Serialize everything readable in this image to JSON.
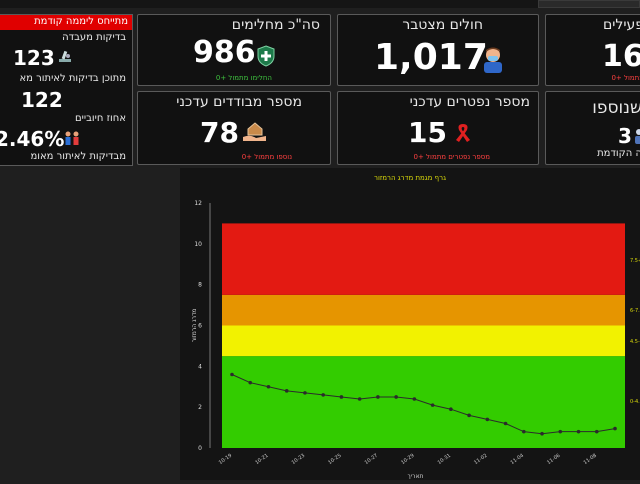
{
  "left_panel": {
    "banner": "מתייחס ליממה קודמת",
    "tests_label": "בדיקות מעבדה",
    "tests_value": "123",
    "tracing_label": "מתוכן בדיקות לאיתור מא",
    "tracing_value": "122",
    "positive_label": "אחוז חיוביים",
    "positive_value": "2.46%",
    "confirmed_label": "מבדיקות לאיתור מאומ"
  },
  "cards": {
    "recovered": {
      "title": "סה\"כ מחלימים",
      "value": "986",
      "sub": "החלימו מתמול +0",
      "icon": "shield-medical-icon",
      "accent": "#3ec23e"
    },
    "cumulative": {
      "title": "חולים מצטבר",
      "value": "1,017",
      "icon": "patient-mask-icon"
    },
    "active": {
      "title": "פעילים",
      "value": "16",
      "sub": "מתמול +0",
      "icon": "person-icon"
    },
    "isolated": {
      "title": "מספר מבודדים עדכני",
      "value": "78",
      "sub": "נוספו מתמול +0",
      "icon": "hand-house-icon"
    },
    "deceased": {
      "title": "מספר נפטרים עדכני",
      "value": "15",
      "sub": "מספר נפטרים מתמול +0",
      "icon": "ribbon-icon"
    },
    "added": {
      "title": "שנוספו",
      "value": "3",
      "sub": "ה הקודמת",
      "icon": "people-icon"
    }
  },
  "chart_data": {
    "type": "line",
    "title": "גרף מגמת מדרג הרמזור",
    "xlabel": "תאריך",
    "ylabel": "מדרג הרמזור",
    "ylim": [
      0,
      12
    ],
    "yticks": [
      "0",
      "2",
      "4",
      "6",
      "8",
      "10",
      "12"
    ],
    "bands": [
      {
        "from": 0,
        "to": 4.5,
        "color": "#33cc00"
      },
      {
        "from": 4.5,
        "to": 6,
        "color": "#f2f200"
      },
      {
        "from": 6,
        "to": 7.5,
        "color": "#e69500"
      },
      {
        "from": 7.5,
        "to": 11,
        "color": "#e31a12"
      }
    ],
    "right_labels": [
      "0-4.5",
      "4.5-6",
      "6-7.5",
      "7.5+"
    ],
    "categories": [
      "10-19",
      "10-20",
      "10-21",
      "10-22",
      "10-23",
      "10-24",
      "10-25",
      "10-26",
      "10-27",
      "10-28",
      "10-29",
      "10-30",
      "10-31",
      "11-01",
      "11-02",
      "11-03",
      "11-04",
      "11-05",
      "11-06",
      "11-07",
      "11-08",
      "11-09"
    ],
    "x_tick_labels": [
      "10-19",
      "10-21",
      "10-23",
      "10-25",
      "10-27",
      "10-29",
      "10-31",
      "11-02",
      "11-04",
      "11-06",
      "11-08"
    ],
    "values": [
      3.6,
      3.2,
      3.0,
      2.8,
      2.7,
      2.6,
      2.5,
      2.4,
      2.5,
      2.5,
      2.4,
      2.1,
      1.9,
      1.6,
      1.4,
      1.2,
      0.8,
      0.7,
      0.8,
      0.8,
      0.8,
      0.95
    ],
    "line_color": "#2b2b2b"
  }
}
